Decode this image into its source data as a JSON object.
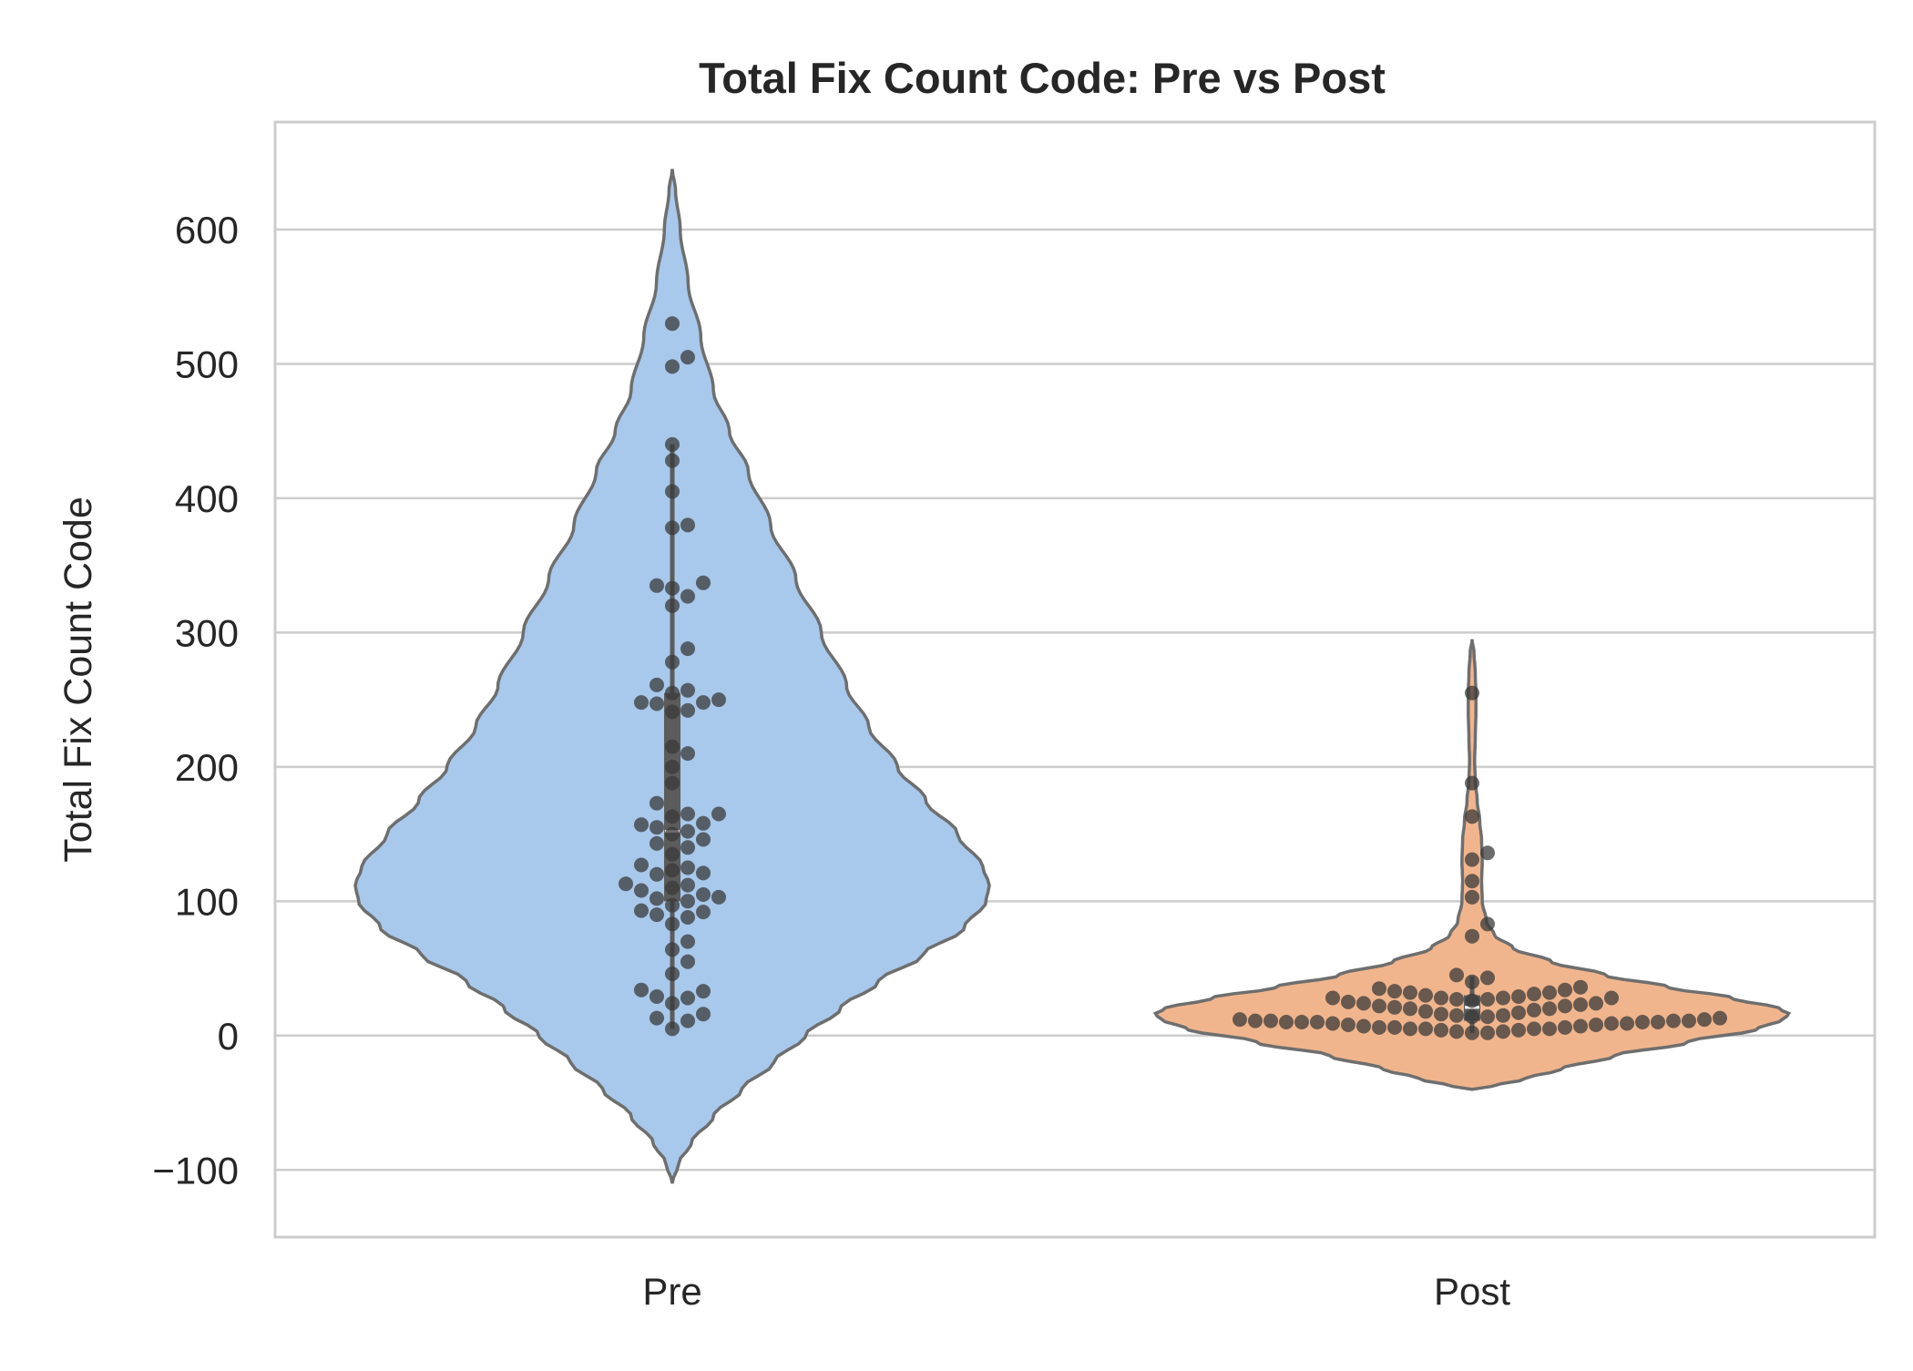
{
  "chart_data": {
    "type": "violin",
    "title": "Total Fix Count Code: Pre vs Post",
    "xlabel": "",
    "ylabel": "Total Fix Count Code",
    "ylim": [
      -150,
      680
    ],
    "yticks": [
      -100,
      0,
      100,
      200,
      300,
      400,
      500,
      600
    ],
    "ytick_labels": [
      "−100",
      "0",
      "100",
      "200",
      "300",
      "400",
      "500",
      "600"
    ],
    "grid": "horizontal",
    "categories": [
      "Pre",
      "Post"
    ],
    "colors": {
      "Pre": "#a8c8ec",
      "Post": "#f1b58d",
      "outline": "#6e6e6e",
      "points": "#3a3a3a",
      "grid": "#cccccc",
      "frame": "#cccccc",
      "inner_box": "#5c5c5c",
      "median": "#ffffff"
    },
    "series": [
      {
        "category": "Pre",
        "violin_range": [
          -110,
          645
        ],
        "density_profile": [
          [
            -110,
            0
          ],
          [
            -95,
            0.02
          ],
          [
            -80,
            0.06
          ],
          [
            -60,
            0.13
          ],
          [
            -40,
            0.22
          ],
          [
            -20,
            0.32
          ],
          [
            0,
            0.42
          ],
          [
            20,
            0.53
          ],
          [
            40,
            0.65
          ],
          [
            60,
            0.79
          ],
          [
            80,
            0.92
          ],
          [
            100,
            0.99
          ],
          [
            112,
            1.0
          ],
          [
            125,
            0.98
          ],
          [
            150,
            0.9
          ],
          [
            175,
            0.8
          ],
          [
            200,
            0.71
          ],
          [
            230,
            0.62
          ],
          [
            260,
            0.55
          ],
          [
            300,
            0.47
          ],
          [
            340,
            0.39
          ],
          [
            380,
            0.31
          ],
          [
            420,
            0.24
          ],
          [
            450,
            0.18
          ],
          [
            480,
            0.13
          ],
          [
            520,
            0.09
          ],
          [
            560,
            0.05
          ],
          [
            600,
            0.025
          ],
          [
            630,
            0.01
          ],
          [
            645,
            0
          ]
        ],
        "quartiles": [
          100,
          152,
          255
        ],
        "whiskers": [
          5,
          440
        ],
        "points": [
          530,
          505,
          498,
          440,
          428,
          405,
          380,
          378,
          337,
          333,
          335,
          327,
          320,
          288,
          278,
          261,
          257,
          255,
          250,
          248,
          248,
          247,
          242,
          241,
          215,
          210,
          200,
          188,
          173,
          165,
          165,
          163,
          158,
          157,
          155,
          152,
          150,
          146,
          143,
          140,
          135,
          127,
          125,
          123,
          121,
          120,
          113,
          112,
          110,
          108,
          105,
          103,
          102,
          100,
          97,
          93,
          92,
          90,
          88,
          83,
          70,
          64,
          55,
          46,
          34,
          33,
          29,
          28,
          24,
          16,
          13,
          11,
          5
        ]
      },
      {
        "category": "Post",
        "violin_range": [
          -40,
          295
        ],
        "density_profile": [
          [
            -40,
            0
          ],
          [
            -38,
            0.06
          ],
          [
            -32,
            0.17
          ],
          [
            -25,
            0.28
          ],
          [
            -15,
            0.45
          ],
          [
            -5,
            0.68
          ],
          [
            5,
            0.9
          ],
          [
            12,
            0.98
          ],
          [
            16,
            1.0
          ],
          [
            20,
            0.97
          ],
          [
            28,
            0.82
          ],
          [
            36,
            0.62
          ],
          [
            45,
            0.42
          ],
          [
            55,
            0.25
          ],
          [
            65,
            0.13
          ],
          [
            75,
            0.07
          ],
          [
            85,
            0.045
          ],
          [
            100,
            0.032
          ],
          [
            115,
            0.03
          ],
          [
            130,
            0.032
          ],
          [
            145,
            0.03
          ],
          [
            160,
            0.024
          ],
          [
            175,
            0.016
          ],
          [
            190,
            0.01
          ],
          [
            205,
            0.008
          ],
          [
            220,
            0.01
          ],
          [
            240,
            0.012
          ],
          [
            255,
            0.012
          ],
          [
            270,
            0.01
          ],
          [
            285,
            0.006
          ],
          [
            295,
            0
          ]
        ],
        "quartiles": [
          11,
          21,
          30
        ],
        "whiskers": [
          2,
          44
        ],
        "points": [
          255,
          188,
          163,
          136,
          131,
          115,
          103,
          83,
          74,
          45,
          43,
          40,
          36,
          35,
          34,
          33,
          32,
          32,
          31,
          30,
          29,
          28,
          28,
          28,
          28,
          27,
          27,
          26,
          25,
          24,
          24,
          23,
          22,
          22,
          21,
          20,
          20,
          19,
          18,
          17,
          16,
          15,
          15,
          14,
          14,
          13,
          12,
          12,
          11,
          11,
          11,
          11,
          10,
          10,
          10,
          10,
          10,
          9,
          9,
          9,
          8,
          8,
          7,
          7,
          6,
          6,
          6,
          5,
          5,
          5,
          5,
          4,
          4,
          3,
          3,
          2,
          2
        ]
      }
    ]
  }
}
